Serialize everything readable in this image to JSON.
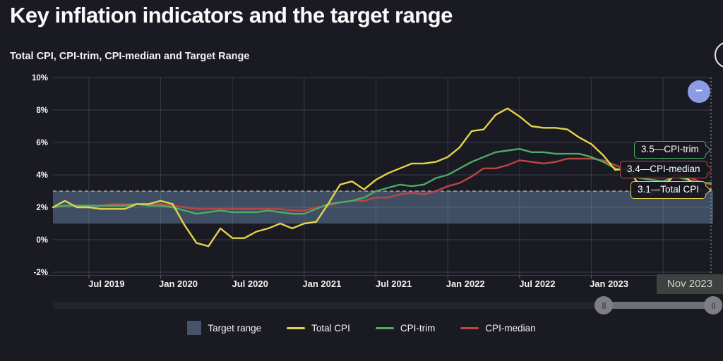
{
  "header": {
    "title": "Key inflation indicators and the target range",
    "subtitle": "Total CPI, CPI-trim, CPI-median and Target Range"
  },
  "colors": {
    "background": "#1a1a23",
    "target_range_band": "#45546a",
    "total_cpi": "#e3d34b",
    "cpi_trim": "#4bad63",
    "cpi_median": "#bf4541",
    "zoom_button": "#8b9ce4"
  },
  "chart_data": {
    "type": "line",
    "title": "Total CPI, CPI-trim, CPI-median and Target Range",
    "x_unit": "month",
    "x": [
      "Apr 2019",
      "May 2019",
      "Jun 2019",
      "Jul 2019",
      "Aug 2019",
      "Sep 2019",
      "Oct 2019",
      "Nov 2019",
      "Dec 2019",
      "Jan 2020",
      "Feb 2020",
      "Mar 2020",
      "Apr 2020",
      "May 2020",
      "Jun 2020",
      "Jul 2020",
      "Aug 2020",
      "Sep 2020",
      "Oct 2020",
      "Nov 2020",
      "Dec 2020",
      "Jan 2021",
      "Feb 2021",
      "Mar 2021",
      "Apr 2021",
      "May 2021",
      "Jun 2021",
      "Jul 2021",
      "Aug 2021",
      "Sep 2021",
      "Oct 2021",
      "Nov 2021",
      "Dec 2021",
      "Jan 2022",
      "Feb 2022",
      "Mar 2022",
      "Apr 2022",
      "May 2022",
      "Jun 2022",
      "Jul 2022",
      "Aug 2022",
      "Sep 2022",
      "Oct 2022",
      "Nov 2022",
      "Dec 2022",
      "Jan 2023",
      "Feb 2023",
      "Mar 2023",
      "Apr 2023",
      "May 2023",
      "Jun 2023",
      "Jul 2023",
      "Aug 2023",
      "Sep 2023",
      "Oct 2023",
      "Nov 2023"
    ],
    "series": [
      {
        "name": "CPI-median",
        "color": "#bf4541",
        "values": [
          2.0,
          2.1,
          2.1,
          2.1,
          2.1,
          2.2,
          2.2,
          2.2,
          2.2,
          2.2,
          2.1,
          2.0,
          1.9,
          1.9,
          1.9,
          1.9,
          1.9,
          1.9,
          1.9,
          1.9,
          1.8,
          1.8,
          2.0,
          2.1,
          2.3,
          2.4,
          2.4,
          2.6,
          2.6,
          2.8,
          2.9,
          2.8,
          3.0,
          3.3,
          3.5,
          3.9,
          4.4,
          4.4,
          4.6,
          4.9,
          4.8,
          4.7,
          4.8,
          5.0,
          5.0,
          5.0,
          4.9,
          4.6,
          4.3,
          3.9,
          3.9,
          3.9,
          4.1,
          3.9,
          3.6,
          3.4
        ]
      },
      {
        "name": "CPI-trim",
        "color": "#4bad63",
        "values": [
          2.0,
          2.1,
          2.1,
          2.1,
          2.1,
          2.1,
          2.1,
          2.2,
          2.1,
          2.1,
          2.0,
          1.8,
          1.6,
          1.7,
          1.8,
          1.7,
          1.7,
          1.7,
          1.8,
          1.7,
          1.6,
          1.6,
          1.9,
          2.2,
          2.3,
          2.4,
          2.6,
          3.0,
          3.2,
          3.4,
          3.3,
          3.4,
          3.8,
          4.0,
          4.4,
          4.8,
          5.1,
          5.4,
          5.5,
          5.6,
          5.4,
          5.4,
          5.3,
          5.3,
          5.3,
          5.1,
          4.8,
          4.4,
          4.2,
          3.8,
          3.7,
          3.6,
          3.9,
          3.7,
          3.5,
          3.5
        ]
      },
      {
        "name": "Total CPI",
        "color": "#e3d34b",
        "values": [
          2.0,
          2.4,
          2.0,
          2.0,
          1.9,
          1.9,
          1.9,
          2.2,
          2.2,
          2.4,
          2.2,
          0.9,
          -0.2,
          -0.4,
          0.7,
          0.1,
          0.1,
          0.5,
          0.7,
          1.0,
          0.7,
          1.0,
          1.1,
          2.2,
          3.4,
          3.6,
          3.1,
          3.7,
          4.1,
          4.4,
          4.7,
          4.7,
          4.8,
          5.1,
          5.7,
          6.7,
          6.8,
          7.7,
          8.1,
          7.6,
          7.0,
          6.9,
          6.9,
          6.8,
          6.3,
          5.9,
          5.2,
          4.3,
          4.4,
          3.4,
          2.8,
          3.3,
          4.0,
          3.8,
          3.1,
          3.1
        ]
      }
    ],
    "target_range": {
      "label": "Target range",
      "low": 1,
      "high": 3,
      "color": "#45546a",
      "dashed_top": true
    },
    "ylim": [
      -2,
      10
    ],
    "y_ticks": [
      {
        "value": 10,
        "label": "10%"
      },
      {
        "value": 8,
        "label": "8%"
      },
      {
        "value": 6,
        "label": "6%"
      },
      {
        "value": 4,
        "label": "4%"
      },
      {
        "value": 2,
        "label": "2%"
      },
      {
        "value": 0,
        "label": "0%"
      },
      {
        "value": -2,
        "label": "-2%"
      }
    ],
    "x_ticks": [
      {
        "index": 3,
        "label": "Jul 2019"
      },
      {
        "index": 9,
        "label": "Jan 2020"
      },
      {
        "index": 15,
        "label": "Jul 2020"
      },
      {
        "index": 21,
        "label": "Jan 2021"
      },
      {
        "index": 27,
        "label": "Jul 2021"
      },
      {
        "index": 33,
        "label": "Jan 2022"
      },
      {
        "index": 39,
        "label": "Jul 2022"
      },
      {
        "index": 45,
        "label": "Jan 2023"
      },
      {
        "index": 51,
        "label": ""
      }
    ],
    "crosshair": {
      "index": 55,
      "label": "Nov 2023"
    },
    "grid": true,
    "legend_position": "bottom"
  },
  "annotations": {
    "end_labels": [
      {
        "text": "3.5—CPI-trim",
        "value": 3.5,
        "series": "CPI-trim",
        "color": "#4bad63"
      },
      {
        "text": "3.4—CPI-median",
        "value": 3.4,
        "series": "CPI-median",
        "color": "#bf4541"
      },
      {
        "text": "3.1—Total CPI",
        "value": 3.1,
        "series": "Total CPI",
        "color": "#e3d34b"
      }
    ]
  },
  "legend": {
    "items": [
      {
        "label": "Target range",
        "swatch": "square",
        "color": "#45546a"
      },
      {
        "label": "Total CPI",
        "swatch": "line",
        "color": "#e3d34b"
      },
      {
        "label": "CPI-trim",
        "swatch": "line",
        "color": "#4bad63"
      },
      {
        "label": "CPI-median",
        "swatch": "line",
        "color": "#bf4541"
      }
    ]
  },
  "controls": {
    "zoom_out_label": "−",
    "crosshair_axis_label": "Nov 2023"
  }
}
